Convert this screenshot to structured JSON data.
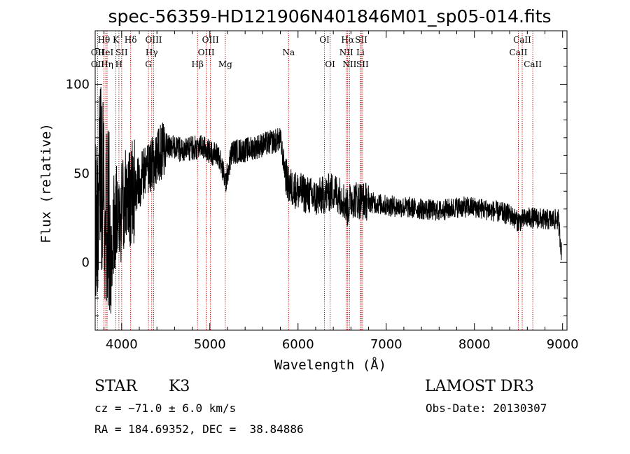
{
  "title": "spec-56359-HD121906N401846M01_sp05-014.fits",
  "info": {
    "object_class": "STAR",
    "subclass": "K3",
    "survey": "LAMOST DR3",
    "cz": "cz = −71.0 ± 6.0 km/s",
    "obs_date": "Obs-Date: 20130307",
    "coords": "RA = 184.69352, DEC =  38.84886"
  },
  "chart_data": {
    "type": "line",
    "title": "spec-56359-HD121906N401846M01_sp05-014.fits",
    "xlabel": "Wavelength (Å)",
    "ylabel": "Flux (relative)",
    "xlim": [
      3700,
      9050
    ],
    "ylim": [
      -38,
      130
    ],
    "x_ticks": [
      4000,
      5000,
      6000,
      7000,
      8000,
      9000
    ],
    "y_ticks": [
      0,
      50,
      100
    ],
    "x_tick_labels": [
      "4000",
      "5000",
      "6000",
      "7000",
      "8000",
      "9000"
    ],
    "y_tick_labels": [
      "0",
      "50",
      "100"
    ],
    "grid": false,
    "line_color": "#000000",
    "marker_color": "#cc0000",
    "spectrum_profile": [
      {
        "x": 3700,
        "y": 20
      },
      {
        "x": 3760,
        "y": 45
      },
      {
        "x": 3820,
        "y": 30
      },
      {
        "x": 3900,
        "y": 22
      },
      {
        "x": 4000,
        "y": 30
      },
      {
        "x": 4100,
        "y": 38
      },
      {
        "x": 4200,
        "y": 45
      },
      {
        "x": 4300,
        "y": 52
      },
      {
        "x": 4400,
        "y": 58
      },
      {
        "x": 4500,
        "y": 66
      },
      {
        "x": 4600,
        "y": 64
      },
      {
        "x": 4700,
        "y": 63
      },
      {
        "x": 4800,
        "y": 64
      },
      {
        "x": 4900,
        "y": 65
      },
      {
        "x": 5000,
        "y": 62
      },
      {
        "x": 5100,
        "y": 60
      },
      {
        "x": 5180,
        "y": 45
      },
      {
        "x": 5250,
        "y": 62
      },
      {
        "x": 5400,
        "y": 63
      },
      {
        "x": 5600,
        "y": 66
      },
      {
        "x": 5800,
        "y": 69
      },
      {
        "x": 5850,
        "y": 52
      },
      {
        "x": 5890,
        "y": 43
      },
      {
        "x": 6000,
        "y": 40
      },
      {
        "x": 6100,
        "y": 38
      },
      {
        "x": 6200,
        "y": 36
      },
      {
        "x": 6300,
        "y": 38
      },
      {
        "x": 6400,
        "y": 40
      },
      {
        "x": 6500,
        "y": 37
      },
      {
        "x": 6563,
        "y": 30
      },
      {
        "x": 6600,
        "y": 36
      },
      {
        "x": 6800,
        "y": 34
      },
      {
        "x": 7000,
        "y": 32
      },
      {
        "x": 7200,
        "y": 31
      },
      {
        "x": 7400,
        "y": 30
      },
      {
        "x": 7600,
        "y": 29
      },
      {
        "x": 7800,
        "y": 31
      },
      {
        "x": 8000,
        "y": 31
      },
      {
        "x": 8200,
        "y": 29
      },
      {
        "x": 8400,
        "y": 27
      },
      {
        "x": 8498,
        "y": 23
      },
      {
        "x": 8600,
        "y": 25
      },
      {
        "x": 8700,
        "y": 25
      },
      {
        "x": 8800,
        "y": 24
      },
      {
        "x": 8950,
        "y": 24
      },
      {
        "x": 8990,
        "y": 5
      }
    ],
    "spectral_lines": [
      {
        "label": "OII",
        "x": 3727,
        "row": 1
      },
      {
        "label": "OII",
        "x": 3727,
        "row": 2
      },
      {
        "label": "Hθ",
        "x": 3798,
        "row": 0
      },
      {
        "label": "HeI",
        "x": 3820,
        "row": 1
      },
      {
        "label": "Hη",
        "x": 3835,
        "row": 2
      },
      {
        "label": "K",
        "x": 3934,
        "row": 0
      },
      {
        "label": "SII",
        "x": 4000,
        "row": 1
      },
      {
        "label": "H",
        "x": 3969,
        "row": 2
      },
      {
        "label": "Hδ",
        "x": 4102,
        "row": 0
      },
      {
        "label": "OIII",
        "x": 4363,
        "row": 0
      },
      {
        "label": "Hγ",
        "x": 4341,
        "row": 1
      },
      {
        "label": "G",
        "x": 4304,
        "row": 2
      },
      {
        "label": "Hβ",
        "x": 4861,
        "row": 2
      },
      {
        "label": "OIII",
        "x": 5007,
        "row": 0
      },
      {
        "label": "OIII",
        "x": 4959,
        "row": 1
      },
      {
        "label": "Mg",
        "x": 5175,
        "row": 2
      },
      {
        "label": "Na",
        "x": 5893,
        "row": 1
      },
      {
        "label": "OI",
        "x": 6300,
        "row": 0
      },
      {
        "label": "OI",
        "x": 6364,
        "row": 2
      },
      {
        "label": "Hα",
        "x": 6563,
        "row": 0
      },
      {
        "label": "SII",
        "x": 6717,
        "row": 0
      },
      {
        "label": "NII",
        "x": 6548,
        "row": 1
      },
      {
        "label": "Li",
        "x": 6708,
        "row": 1
      },
      {
        "label": "NII",
        "x": 6584,
        "row": 2
      },
      {
        "label": "SII",
        "x": 6731,
        "row": 2
      },
      {
        "label": "CaII",
        "x": 8542,
        "row": 0
      },
      {
        "label": "CaII",
        "x": 8498,
        "row": 1
      },
      {
        "label": "CaII",
        "x": 8662,
        "row": 2
      }
    ]
  }
}
